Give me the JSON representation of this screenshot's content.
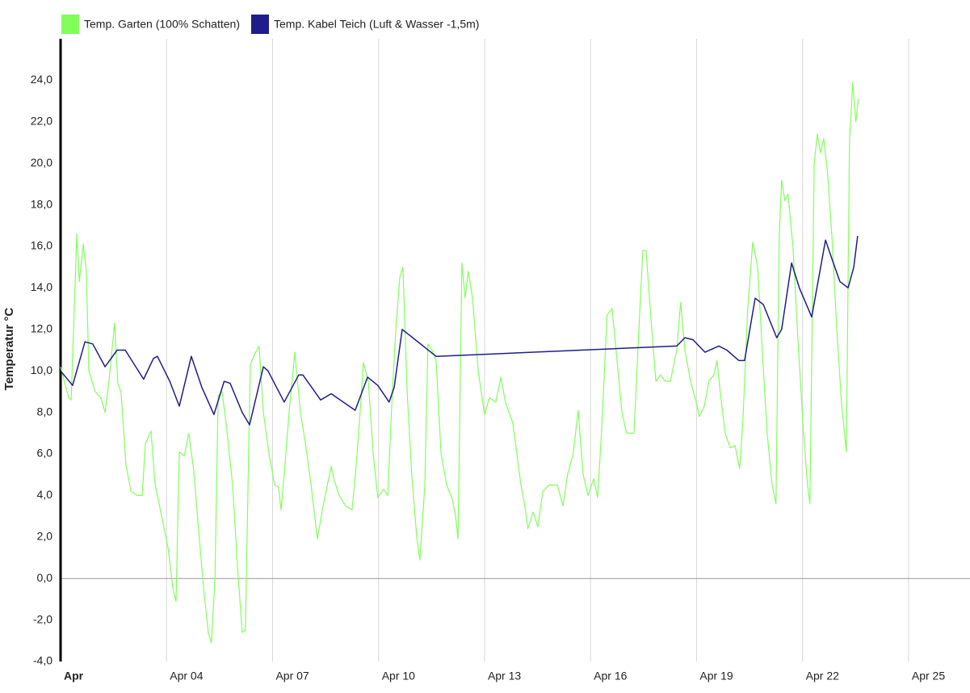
{
  "chart_data": {
    "type": "line",
    "y_label": "Temperatur °C",
    "xlim": [
      1,
      26.74
    ],
    "xticks": [
      {
        "value": 1,
        "label": "Apr"
      },
      {
        "value": 4,
        "label": "Apr 04"
      },
      {
        "value": 7,
        "label": "Apr 07"
      },
      {
        "value": 10,
        "label": "Apr 10"
      },
      {
        "value": 13,
        "label": "Apr 13"
      },
      {
        "value": 16,
        "label": "Apr 16"
      },
      {
        "value": 19,
        "label": "Apr 19"
      },
      {
        "value": 22,
        "label": "Apr 22"
      },
      {
        "value": 25,
        "label": "Apr 25"
      }
    ],
    "ylim": [
      -4,
      26
    ],
    "yticks": [
      {
        "value": -4,
        "label": "-4,0"
      },
      {
        "value": -2,
        "label": "-2,0"
      },
      {
        "value": 0,
        "label": "0,0"
      },
      {
        "value": 2,
        "label": "2,0"
      },
      {
        "value": 4,
        "label": "4,0"
      },
      {
        "value": 6,
        "label": "6,0"
      },
      {
        "value": 8,
        "label": "8,0"
      },
      {
        "value": 10,
        "label": "10,0"
      },
      {
        "value": 12,
        "label": "12,0"
      },
      {
        "value": 14,
        "label": "14,0"
      },
      {
        "value": 16,
        "label": "16,0"
      },
      {
        "value": 18,
        "label": "18,0"
      },
      {
        "value": 20,
        "label": "20,0"
      },
      {
        "value": 22,
        "label": "22,0"
      },
      {
        "value": 24,
        "label": "24,0"
      }
    ],
    "grid": "x",
    "legend": "top-left",
    "series": [
      {
        "name": "Temp. Garten (100% Schatten)",
        "color": "#80ff5a",
        "x": [
          1.0,
          1.23,
          1.3,
          1.46,
          1.53,
          1.64,
          1.73,
          1.8,
          1.98,
          2.14,
          2.26,
          2.37,
          2.53,
          2.62,
          2.71,
          2.85,
          2.99,
          3.17,
          3.31,
          3.4,
          3.56,
          3.67,
          3.86,
          4.04,
          4.18,
          4.27,
          4.36,
          4.5,
          4.63,
          4.77,
          4.91,
          5.05,
          5.18,
          5.27,
          5.37,
          5.46,
          5.57,
          5.69,
          5.87,
          6.01,
          6.14,
          6.23,
          6.37,
          6.49,
          6.62,
          6.74,
          6.9,
          7.06,
          7.17,
          7.24,
          7.33,
          7.47,
          7.63,
          7.79,
          7.93,
          8.09,
          8.27,
          8.43,
          8.54,
          8.66,
          8.75,
          8.89,
          9.07,
          9.25,
          9.37,
          9.5,
          9.57,
          9.71,
          9.85,
          9.98,
          10.14,
          10.26,
          10.39,
          10.49,
          10.6,
          10.69,
          10.81,
          10.94,
          11.08,
          11.17,
          11.31,
          11.4,
          11.51,
          11.63,
          11.77,
          11.93,
          12.09,
          12.18,
          12.25,
          12.36,
          12.45,
          12.54,
          12.66,
          12.82,
          13.0,
          13.14,
          13.32,
          13.46,
          13.59,
          13.8,
          14.03,
          14.14,
          14.23,
          14.37,
          14.51,
          14.65,
          14.83,
          15.06,
          15.22,
          15.35,
          15.51,
          15.65,
          15.79,
          15.93,
          16.09,
          16.2,
          16.31,
          16.47,
          16.61,
          16.75,
          16.89,
          17.02,
          17.23,
          17.34,
          17.48,
          17.57,
          17.71,
          17.85,
          17.98,
          18.12,
          18.26,
          18.44,
          18.55,
          18.67,
          18.83,
          18.99,
          19.08,
          19.22,
          19.35,
          19.49,
          19.58,
          19.67,
          19.81,
          19.95,
          20.09,
          20.22,
          20.31,
          20.45,
          20.59,
          20.73,
          20.86,
          21.0,
          21.14,
          21.25,
          21.34,
          21.41,
          21.5,
          21.59,
          21.73,
          21.87,
          22.01,
          22.14,
          22.21,
          22.33,
          22.42,
          22.51,
          22.6,
          22.71,
          22.83,
          22.97,
          23.1,
          23.24,
          23.33,
          23.42,
          23.51,
          23.58
        ],
        "values": [
          10.2,
          8.7,
          8.6,
          16.6,
          14.3,
          16.1,
          14.8,
          10,
          9,
          8.7,
          8.0,
          9.5,
          12.3,
          9.4,
          9.0,
          5.5,
          4.2,
          4.0,
          4.0,
          6.5,
          7.1,
          4.6,
          3.0,
          1.5,
          -0.5,
          -1.1,
          6.1,
          5.9,
          7.0,
          5.2,
          2.3,
          -0.5,
          -2.6,
          -3.1,
          0,
          8.8,
          9.0,
          7.4,
          4.5,
          0.5,
          -2.6,
          -2.5,
          10.3,
          10.8,
          11.2,
          8.0,
          6.0,
          4.5,
          4.4,
          3.3,
          5.0,
          8.0,
          10.9,
          8.0,
          6.5,
          4.5,
          1.9,
          3.5,
          4.4,
          5.4,
          4.7,
          4.0,
          3.5,
          3.3,
          5.5,
          8.5,
          10.4,
          9.5,
          6.0,
          3.9,
          4.3,
          4.0,
          9.0,
          12.0,
          14.5,
          15.0,
          9.0,
          5.0,
          2.0,
          0.9,
          4.5,
          11.3,
          11.0,
          10.5,
          6.0,
          4.5,
          3.8,
          3.0,
          1.9,
          15.2,
          13.5,
          14.8,
          13.5,
          10.0,
          7.9,
          8.7,
          8.5,
          9.7,
          8.5,
          7.5,
          4.5,
          3.5,
          2.4,
          3.2,
          2.5,
          4.2,
          4.5,
          4.5,
          3.5,
          5.0,
          6.0,
          8.1,
          5.0,
          4.0,
          4.8,
          3.9,
          7.0,
          12.7,
          13.0,
          10.5,
          8.0,
          7.0,
          7.0,
          11.0,
          15.8,
          15.8,
          12.5,
          9.5,
          9.8,
          9.5,
          9.5,
          11.0,
          13.3,
          11.0,
          9.5,
          8.5,
          7.8,
          8.3,
          9.5,
          9.8,
          10.5,
          9.0,
          7.0,
          6.3,
          6.4,
          5.3,
          7.5,
          13.0,
          16.2,
          15.0,
          11.0,
          7.0,
          4.5,
          3.6,
          16.5,
          19.2,
          18.2,
          18.5,
          16.0,
          11.5,
          7.5,
          4.5,
          3.6,
          20.0,
          21.4,
          20.5,
          21.2,
          19.5,
          16.5,
          12.0,
          8.5,
          6.1,
          21.0,
          23.9,
          22.0,
          23.1
        ]
      },
      {
        "name": "Temp. Kabel Teich (Luft & Wasser -1,5m)",
        "color": "#1f1d8a",
        "x": [
          1.0,
          1.34,
          1.69,
          1.91,
          2.26,
          2.6,
          2.83,
          3.35,
          3.63,
          3.74,
          4.09,
          4.36,
          4.7,
          5.0,
          5.34,
          5.63,
          5.8,
          6.14,
          6.35,
          6.74,
          6.87,
          7.33,
          7.74,
          7.86,
          8.36,
          8.66,
          9.34,
          9.69,
          9.98,
          10.3,
          10.44,
          10.67,
          11.63,
          18.44,
          18.67,
          18.9,
          19.24,
          19.63,
          19.86,
          20.2,
          20.36,
          20.66,
          20.89,
          21.27,
          21.41,
          21.69,
          21.91,
          22.26,
          22.65,
          22.83,
          23.06,
          23.29,
          23.45,
          23.56
        ],
        "values": [
          10.0,
          9.3,
          11.4,
          11.3,
          10.2,
          11.0,
          11.0,
          9.6,
          10.6,
          10.7,
          9.5,
          8.3,
          10.7,
          9.2,
          7.9,
          9.5,
          9.4,
          8.0,
          7.4,
          10.2,
          10.0,
          8.5,
          9.8,
          9.8,
          8.6,
          8.9,
          8.1,
          9.7,
          9.3,
          8.5,
          9.2,
          12.0,
          10.7,
          11.2,
          11.6,
          11.5,
          10.9,
          11.2,
          11.0,
          10.5,
          10.5,
          13.5,
          13.2,
          11.6,
          12.0,
          15.2,
          14.0,
          12.6,
          16.3,
          15.4,
          14.3,
          14.0,
          15.0,
          16.5
        ]
      }
    ]
  }
}
